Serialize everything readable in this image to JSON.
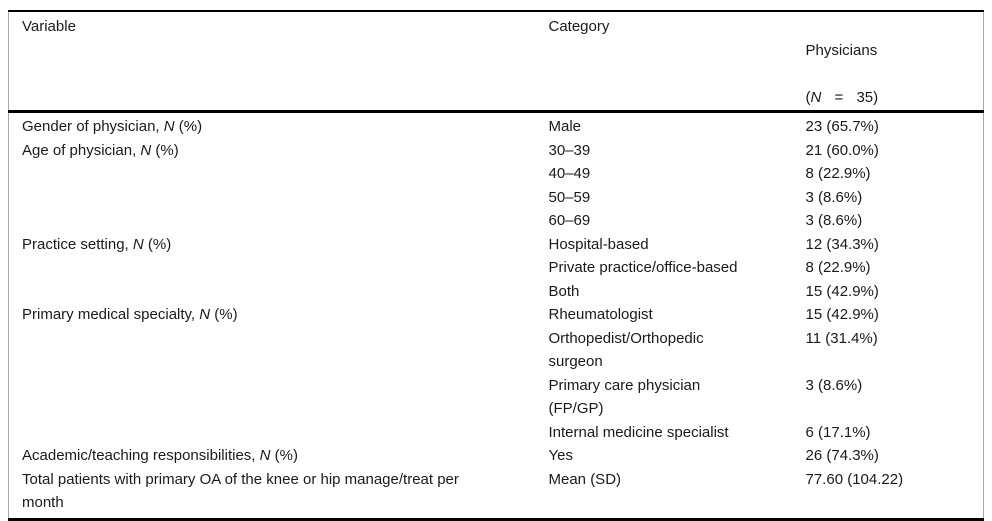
{
  "table": {
    "header": {
      "variable": "Variable",
      "category": "Category",
      "physicians_line1": "Physicians",
      "physicians_open_paren": "(",
      "physicians_n": "N",
      "physicians_eq_value": " = 35)"
    },
    "rows": [
      {
        "variable_pre": "Gender of physician, ",
        "variable_italic": "N",
        "variable_post": " (%)",
        "category": "Male",
        "physicians": "23 (65.7%)"
      },
      {
        "variable_pre": "Age of physician, ",
        "variable_italic": "N",
        "variable_post": " (%)",
        "category": "30–39",
        "physicians": "21 (60.0%)"
      },
      {
        "variable_pre": "",
        "variable_italic": "",
        "variable_post": "",
        "category": "40–49",
        "physicians": "8 (22.9%)"
      },
      {
        "variable_pre": "",
        "variable_italic": "",
        "variable_post": "",
        "category": "50–59",
        "physicians": "3 (8.6%)"
      },
      {
        "variable_pre": "",
        "variable_italic": "",
        "variable_post": "",
        "category": "60–69",
        "physicians": "3 (8.6%)"
      },
      {
        "variable_pre": "Practice setting, ",
        "variable_italic": "N",
        "variable_post": " (%)",
        "category": "Hospital-based",
        "physicians": "12 (34.3%)"
      },
      {
        "variable_pre": "",
        "variable_italic": "",
        "variable_post": "",
        "category": "Private practice/office-based",
        "physicians": "8 (22.9%)"
      },
      {
        "variable_pre": "",
        "variable_italic": "",
        "variable_post": "",
        "category": "Both",
        "physicians": "15 (42.9%)"
      },
      {
        "variable_pre": "Primary medical specialty, ",
        "variable_italic": "N",
        "variable_post": " (%)",
        "category": "Rheumatologist",
        "physicians": "15 (42.9%)"
      },
      {
        "variable_pre": "",
        "variable_italic": "",
        "variable_post": "",
        "category": "Orthopedist/Orthopedic\nsurgeon",
        "physicians": "11 (31.4%)"
      },
      {
        "variable_pre": "",
        "variable_italic": "",
        "variable_post": "",
        "category": "Primary care physician\n(FP/GP)",
        "physicians": "3 (8.6%)"
      },
      {
        "variable_pre": "",
        "variable_italic": "",
        "variable_post": "",
        "category": "Internal medicine specialist",
        "physicians": "6 (17.1%)"
      },
      {
        "variable_pre": "Academic/teaching responsibilities, ",
        "variable_italic": "N",
        "variable_post": " (%)",
        "category": "Yes",
        "physicians": "26 (74.3%)"
      },
      {
        "variable_pre": "Total patients with primary OA of the knee or hip manage/treat per\nmonth",
        "variable_italic": "",
        "variable_post": "",
        "category": "Mean (SD)",
        "physicians": "77.60 (104.22)"
      }
    ],
    "colors": {
      "rule": "#000000",
      "side_border": "#a8a8a8",
      "text": "#1a1a1a",
      "background": "#ffffff"
    }
  }
}
